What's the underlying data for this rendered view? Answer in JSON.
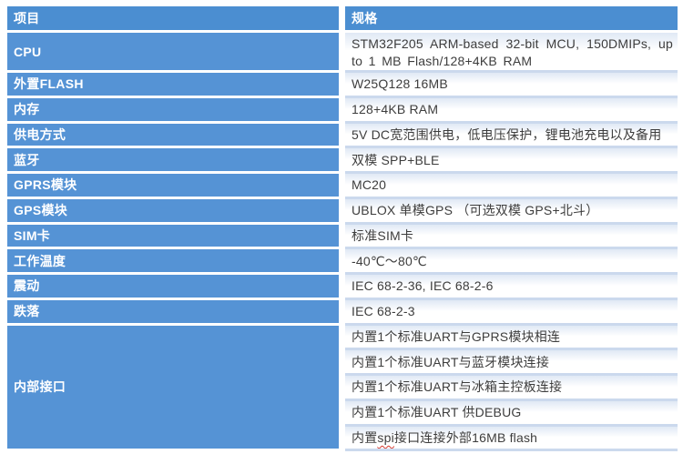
{
  "table": {
    "header": {
      "item": "项目",
      "spec": "规格"
    },
    "rows": [
      {
        "item": "CPU",
        "spec": "STM32F205 ARM-based 32-bit MCU, 150DMIPs, up to 1 MB Flash/128+4KB RAM"
      },
      {
        "item": "外置FLASH",
        "spec": "W25Q128  16MB"
      },
      {
        "item": "内存",
        "spec": "128+4KB RAM"
      },
      {
        "item": "供电方式",
        "spec": "5V DC宽范围供电，低电压保护，锂电池充电以及备用"
      },
      {
        "item": "蓝牙",
        "spec": "双模 SPP+BLE"
      },
      {
        "item": "GPRS模块",
        "spec": "MC20"
      },
      {
        "item": "GPS模块",
        "spec": "UBLOX 单模GPS （可选双模 GPS+北斗）"
      },
      {
        "item": "SIM卡",
        "spec": "标准SIM卡"
      },
      {
        "item": "工作温度",
        "spec": "-40℃～80℃"
      },
      {
        "item": "震动",
        "spec": "IEC 68-2-36, IEC 68-2-6"
      },
      {
        "item": "跌落",
        "spec": "IEC 68-2-3"
      }
    ],
    "merged_row": {
      "item": "内部接口",
      "specs": [
        "内置1个标准UART与GPRS模块相连",
        "内置1个标准UART与蓝牙模块连接",
        "内置1个标准UART与冰箱主控板连接",
        "内置1个标准UART 供DEBUG"
      ],
      "last_spec": {
        "pre": "内置",
        "misspelled": "spi",
        "post": "接口连接外部16MB flash"
      }
    }
  },
  "colors": {
    "header_blue": "#4b8ed1",
    "row_blue": "#5593d5",
    "separator_blue": "#cbd9ed",
    "spec_text": "#3d3d3d",
    "squiggle_red": "#d83a2e"
  }
}
